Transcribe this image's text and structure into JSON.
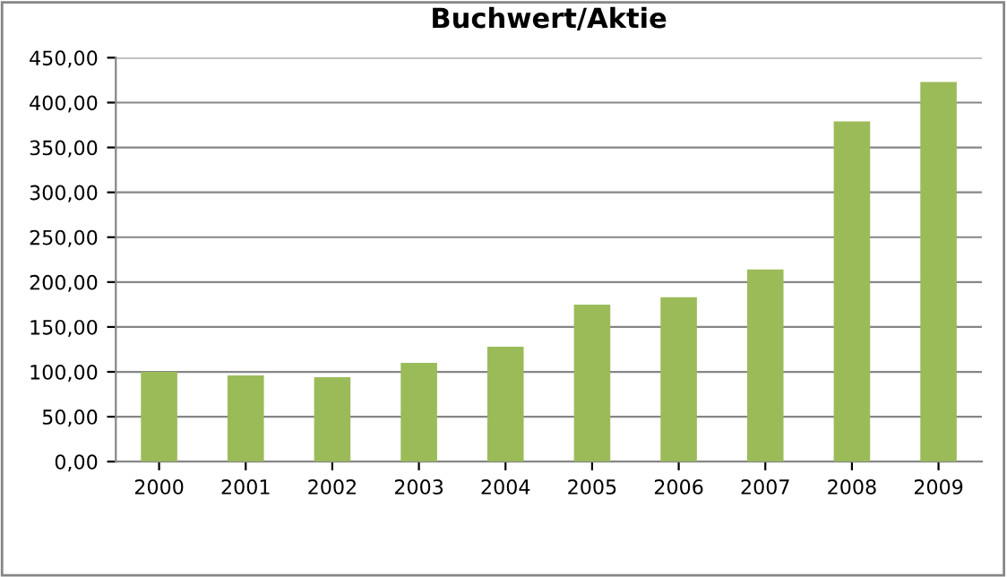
{
  "chart_data": {
    "type": "bar",
    "title": "Buchwert/Aktie",
    "categories": [
      "2000",
      "2001",
      "2002",
      "2003",
      "2004",
      "2005",
      "2006",
      "2007",
      "2008",
      "2009"
    ],
    "series": [
      {
        "color": "#9bbb59",
        "values": [
          100,
          96,
          94,
          110,
          128,
          175,
          183,
          214,
          379,
          423
        ]
      }
    ],
    "ylim": [
      0,
      450
    ],
    "yticks": [
      {
        "value": 0,
        "label": "0,00"
      },
      {
        "value": 50,
        "label": "50,00"
      },
      {
        "value": 100,
        "label": "100,00"
      },
      {
        "value": 150,
        "label": "150,00"
      },
      {
        "value": 200,
        "label": "200,00"
      },
      {
        "value": 250,
        "label": "250,00"
      },
      {
        "value": 300,
        "label": "300,00"
      },
      {
        "value": 350,
        "label": "350,00"
      },
      {
        "value": 400,
        "label": "400,00"
      },
      {
        "value": 450,
        "label": "450,00"
      }
    ],
    "grid": "y"
  }
}
